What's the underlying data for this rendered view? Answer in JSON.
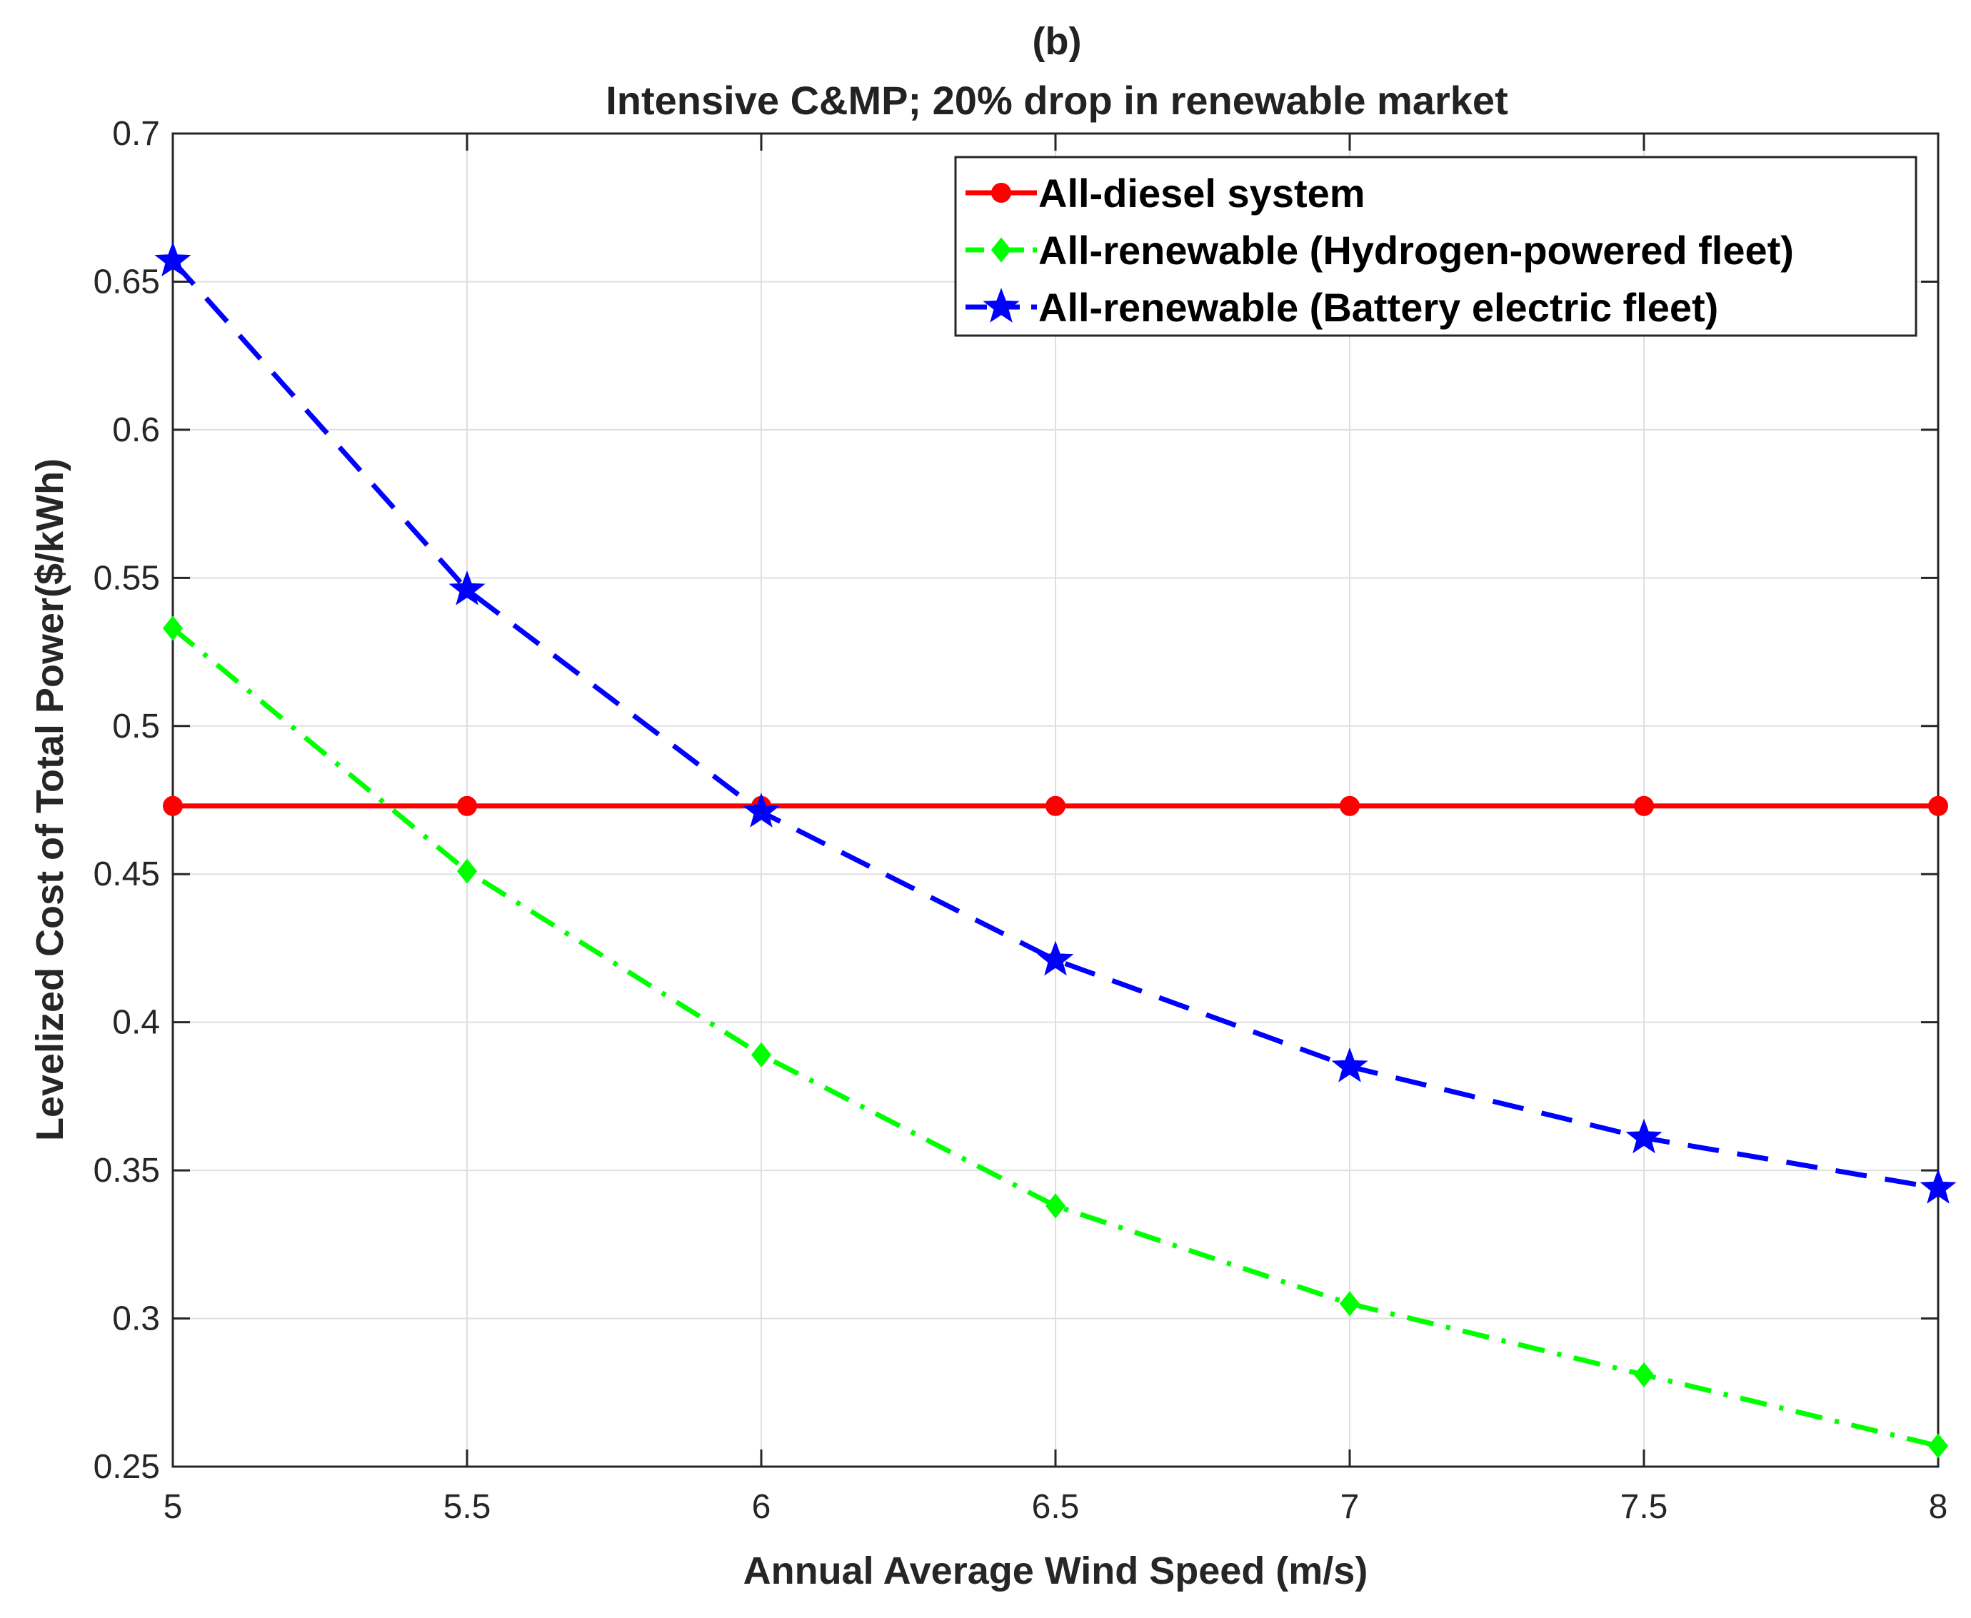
{
  "chart_data": {
    "type": "line",
    "panel_label": "(b)",
    "title": "Intensive C&MP; 20% drop in renewable market",
    "xlabel": "Annual Average Wind Speed (m/s)",
    "ylabel": "Levelized Cost of Total Power($/kWh)",
    "xlim": [
      5,
      8
    ],
    "ylim": [
      0.25,
      0.7
    ],
    "x_ticks": [
      5,
      5.5,
      6,
      6.5,
      7,
      7.5,
      8
    ],
    "x_tick_labels": [
      "5",
      "5.5",
      "6",
      "6.5",
      "7",
      "7.5",
      "8"
    ],
    "y_ticks": [
      0.25,
      0.3,
      0.35,
      0.4,
      0.45,
      0.5,
      0.55,
      0.6,
      0.65,
      0.7
    ],
    "y_tick_labels": [
      "0.25",
      "0.3",
      "0.35",
      "0.4",
      "0.45",
      "0.5",
      "0.55",
      "0.6",
      "0.65",
      "0.7"
    ],
    "grid": true,
    "legend_position": "top-right",
    "x": [
      5,
      5.5,
      6,
      6.5,
      7,
      7.5,
      8
    ],
    "series": [
      {
        "name": "All-diesel system",
        "color": "#ff0000",
        "marker": "circle",
        "line_style": "solid",
        "values": [
          0.473,
          0.473,
          0.473,
          0.473,
          0.473,
          0.473,
          0.473
        ]
      },
      {
        "name": "All-renewable (Hydrogen-powered fleet)",
        "color": "#00ff00",
        "marker": "diamond",
        "line_style": "dash-dot",
        "values": [
          0.533,
          0.451,
          0.389,
          0.338,
          0.305,
          0.281,
          0.257
        ]
      },
      {
        "name": "All-renewable (Battery electric fleet)",
        "color": "#0000ff",
        "marker": "star",
        "line_style": "dashed",
        "values": [
          0.657,
          0.546,
          0.471,
          0.421,
          0.385,
          0.361,
          0.344
        ]
      }
    ]
  }
}
